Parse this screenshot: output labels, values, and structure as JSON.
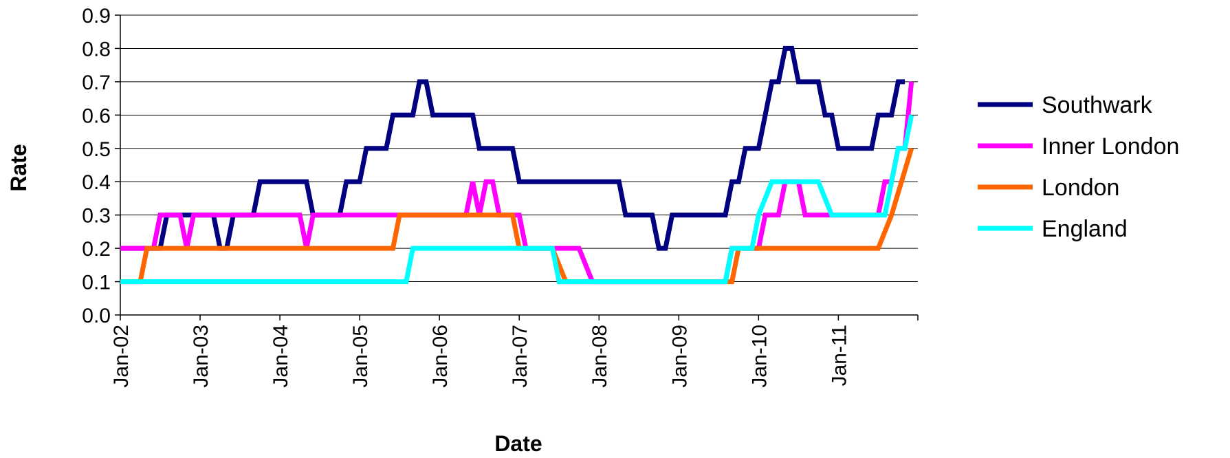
{
  "chart_data": {
    "type": "line",
    "title": "",
    "xlabel": "Date",
    "ylabel": "Rate",
    "ylim": [
      0,
      0.9
    ],
    "y_ticks": [
      "0.0",
      "0.1",
      "0.2",
      "0.3",
      "0.4",
      "0.5",
      "0.6",
      "0.7",
      "0.8",
      "0.9"
    ],
    "x_ticks": [
      "Jan-02",
      "Jan-03",
      "Jan-04",
      "Jan-05",
      "Jan-06",
      "Jan-07",
      "Jan-08",
      "Jan-09",
      "Jan-10",
      "Jan-11"
    ],
    "x_range": [
      "Jan-02",
      "Dec-11"
    ],
    "grid": "horizontal",
    "legend_position": "right",
    "series": [
      {
        "name": "Southwark",
        "color": "#000080",
        "points": [
          [
            "Jan-02",
            0.2
          ],
          [
            "Jul-02",
            0.2
          ],
          [
            "Aug-02",
            0.3
          ],
          [
            "Mar-03",
            0.3
          ],
          [
            "Apr-03",
            0.2
          ],
          [
            "May-03",
            0.2
          ],
          [
            "Jun-03",
            0.3
          ],
          [
            "Sep-03",
            0.3
          ],
          [
            "Oct-03",
            0.4
          ],
          [
            "May-04",
            0.4
          ],
          [
            "Jun-04",
            0.3
          ],
          [
            "Oct-04",
            0.3
          ],
          [
            "Nov-04",
            0.4
          ],
          [
            "Jan-05",
            0.4
          ],
          [
            "Feb-05",
            0.5
          ],
          [
            "May-05",
            0.5
          ],
          [
            "Jun-05",
            0.6
          ],
          [
            "Sep-05",
            0.6
          ],
          [
            "Oct-05",
            0.7
          ],
          [
            "Nov-05",
            0.7
          ],
          [
            "Dec-05",
            0.6
          ],
          [
            "Jun-06",
            0.6
          ],
          [
            "Jul-06",
            0.5
          ],
          [
            "Dec-06",
            0.5
          ],
          [
            "Jan-07",
            0.4
          ],
          [
            "Apr-08",
            0.4
          ],
          [
            "May-08",
            0.3
          ],
          [
            "Sep-08",
            0.3
          ],
          [
            "Oct-08",
            0.2
          ],
          [
            "Nov-08",
            0.2
          ],
          [
            "Dec-08",
            0.3
          ],
          [
            "Aug-09",
            0.3
          ],
          [
            "Sep-09",
            0.4
          ],
          [
            "Oct-09",
            0.4
          ],
          [
            "Nov-09",
            0.5
          ],
          [
            "Jan-10",
            0.5
          ],
          [
            "Mar-10",
            0.7
          ],
          [
            "Apr-10",
            0.7
          ],
          [
            "May-10",
            0.8
          ],
          [
            "Jun-10",
            0.8
          ],
          [
            "Jul-10",
            0.7
          ],
          [
            "Oct-10",
            0.7
          ],
          [
            "Nov-10",
            0.6
          ],
          [
            "Dec-10",
            0.6
          ],
          [
            "Jan-11",
            0.5
          ],
          [
            "Jun-11",
            0.5
          ],
          [
            "Jul-11",
            0.6
          ],
          [
            "Sep-11",
            0.6
          ],
          [
            "Oct-11",
            0.7
          ],
          [
            "Nov-11",
            0.7
          ]
        ]
      },
      {
        "name": "Inner London",
        "color": "#ff00ff",
        "points": [
          [
            "Jan-02",
            0.2
          ],
          [
            "Jun-02",
            0.2
          ],
          [
            "Jul-02",
            0.3
          ],
          [
            "Oct-02",
            0.3
          ],
          [
            "Nov-02",
            0.2
          ],
          [
            "Dec-02",
            0.3
          ],
          [
            "Apr-04",
            0.3
          ],
          [
            "May-04",
            0.2
          ],
          [
            "Jun-04",
            0.3
          ],
          [
            "May-06",
            0.3
          ],
          [
            "Jun-06",
            0.4
          ],
          [
            "Jul-06",
            0.3
          ],
          [
            "Aug-06",
            0.4
          ],
          [
            "Sep-06",
            0.4
          ],
          [
            "Oct-06",
            0.3
          ],
          [
            "Jan-07",
            0.3
          ],
          [
            "Feb-07",
            0.2
          ],
          [
            "Oct-07",
            0.2
          ],
          [
            "Dec-07",
            0.1
          ],
          [
            "Aug-09",
            0.1
          ],
          [
            "Sep-09",
            0.2
          ],
          [
            "Jan-10",
            0.2
          ],
          [
            "Feb-10",
            0.3
          ],
          [
            "Apr-10",
            0.3
          ],
          [
            "May-10",
            0.4
          ],
          [
            "Jul-10",
            0.4
          ],
          [
            "Aug-10",
            0.3
          ],
          [
            "Jul-11",
            0.3
          ],
          [
            "Aug-11",
            0.4
          ],
          [
            "Sep-11",
            0.4
          ],
          [
            "Oct-11",
            0.5
          ],
          [
            "Nov-11",
            0.5
          ],
          [
            "Dec-11",
            0.7
          ]
        ]
      },
      {
        "name": "London",
        "color": "#ff6600",
        "points": [
          [
            "Jan-02",
            0.1
          ],
          [
            "Apr-02",
            0.1
          ],
          [
            "May-02",
            0.2
          ],
          [
            "Jun-05",
            0.2
          ],
          [
            "Jul-05",
            0.3
          ],
          [
            "Dec-06",
            0.3
          ],
          [
            "Jan-07",
            0.2
          ],
          [
            "Jun-07",
            0.2
          ],
          [
            "Aug-07",
            0.1
          ],
          [
            "Sep-09",
            0.1
          ],
          [
            "Oct-09",
            0.2
          ],
          [
            "Jul-11",
            0.2
          ],
          [
            "Sep-11",
            0.3
          ],
          [
            "Dec-11",
            0.5
          ]
        ]
      },
      {
        "name": "England",
        "color": "#00ffff",
        "points": [
          [
            "Jan-02",
            0.1
          ],
          [
            "Aug-05",
            0.1
          ],
          [
            "Sep-05",
            0.2
          ],
          [
            "Jun-07",
            0.2
          ],
          [
            "Jul-07",
            0.1
          ],
          [
            "Aug-09",
            0.1
          ],
          [
            "Sep-09",
            0.2
          ],
          [
            "Dec-09",
            0.2
          ],
          [
            "Jan-10",
            0.3
          ],
          [
            "Mar-10",
            0.4
          ],
          [
            "Oct-10",
            0.4
          ],
          [
            "Dec-10",
            0.3
          ],
          [
            "Aug-11",
            0.3
          ],
          [
            "Oct-11",
            0.5
          ],
          [
            "Nov-11",
            0.5
          ],
          [
            "Dec-11",
            0.6
          ]
        ]
      }
    ]
  }
}
